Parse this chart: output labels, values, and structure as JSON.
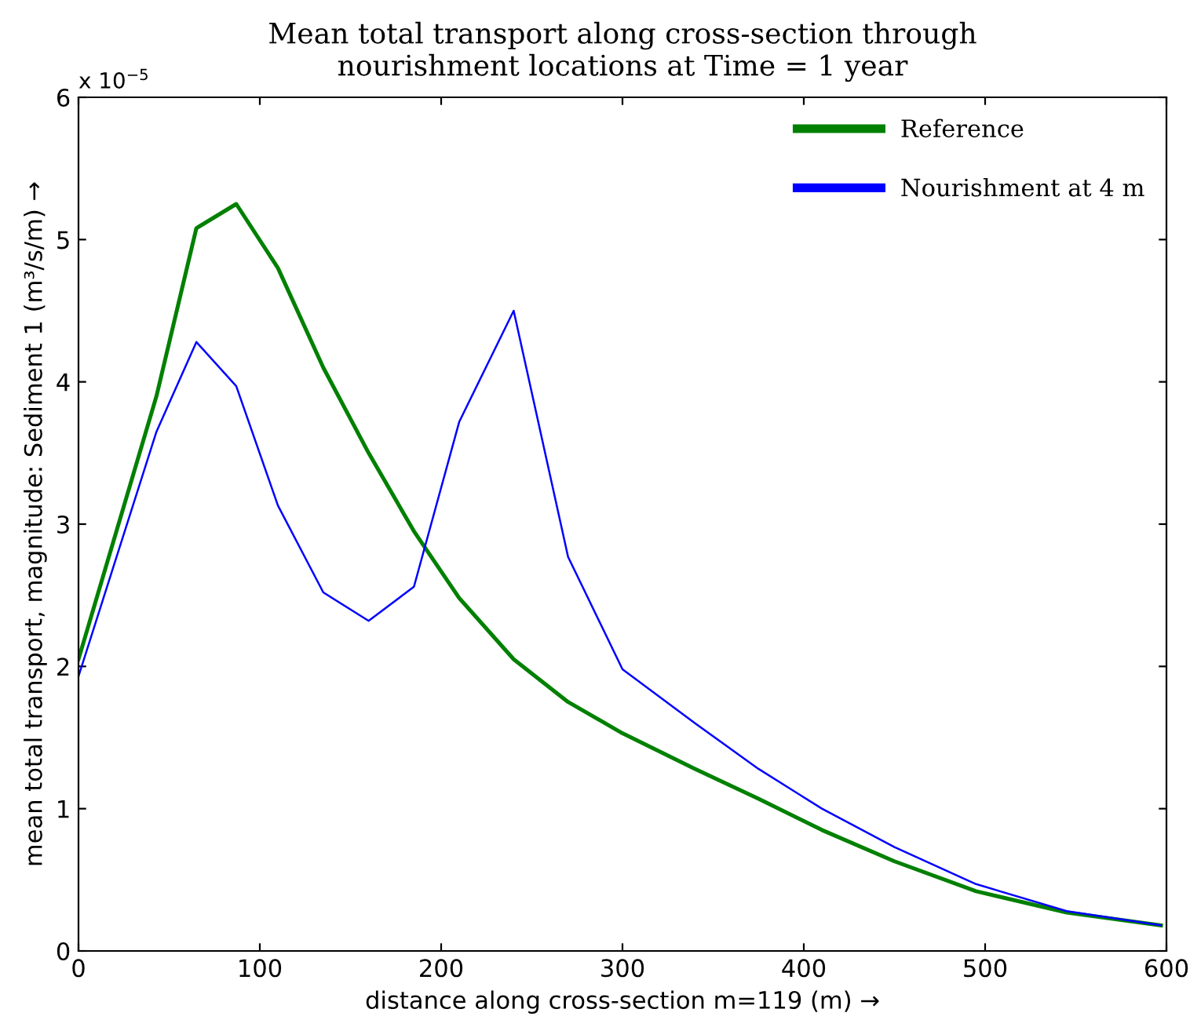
{
  "chart_data": {
    "type": "line",
    "title": "Mean total transport along cross-section through\nnourishment locations at Time = 1 year",
    "xlabel": "distance along cross-section m=119 (m) →",
    "ylabel": "mean total transport, magnitude: Sediment 1 (m³/s/m) →",
    "annotations": [
      "x 10$^{−5}$"
    ],
    "x": [
      0,
      43,
      65,
      87,
      110,
      135,
      160,
      185,
      210,
      240,
      270,
      300,
      340,
      375,
      410,
      450,
      495,
      545,
      597
    ],
    "series": [
      {
        "name": "Reference",
        "color": "#008000",
        "values": [
          2.05,
          3.9,
          5.08,
          5.25,
          4.8,
          4.1,
          3.5,
          2.95,
          2.48,
          2.05,
          1.75,
          1.53,
          1.28,
          1.07,
          0.85,
          0.63,
          0.42,
          0.27,
          0.18
        ]
      },
      {
        "name": "Nourishment at 4 m",
        "color": "#0000ff",
        "values": [
          1.93,
          3.65,
          4.28,
          3.97,
          3.13,
          2.52,
          2.32,
          2.56,
          3.72,
          4.5,
          2.77,
          1.98,
          1.6,
          1.28,
          1.0,
          0.73,
          0.47,
          0.28,
          0.18
        ]
      }
    ],
    "xlim": [
      0,
      600
    ],
    "xticks": [
      0,
      100,
      200,
      300,
      400,
      500,
      600
    ],
    "ylim": [
      0,
      6
    ],
    "yticks": [
      0,
      1,
      2,
      3,
      4,
      5,
      6
    ],
    "grid": false,
    "legend": "top right",
    "marker": "none",
    "line_style": "solid"
  }
}
